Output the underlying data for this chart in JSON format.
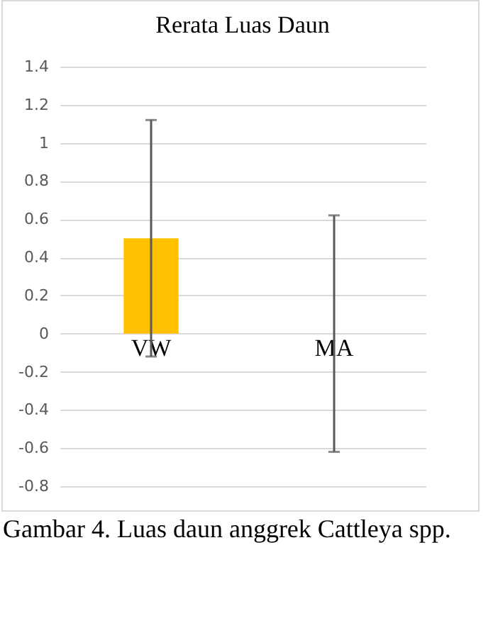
{
  "chart_data": {
    "type": "bar",
    "title": "Rerata Luas Daun",
    "categories": [
      "VW",
      "MA"
    ],
    "values": [
      0.5,
      0
    ],
    "errors": [
      0.62,
      0.62
    ],
    "color": "#ffc000",
    "ylim": [
      -0.8,
      1.4
    ],
    "yticks": [
      -0.8,
      -0.6,
      -0.4,
      -0.2,
      0,
      0.2,
      0.4,
      0.6,
      0.8,
      1,
      1.2,
      1.4
    ],
    "grid": "y",
    "annotations": [
      "Gambar 4. Luas daun anggrek Cattleya spp."
    ]
  }
}
